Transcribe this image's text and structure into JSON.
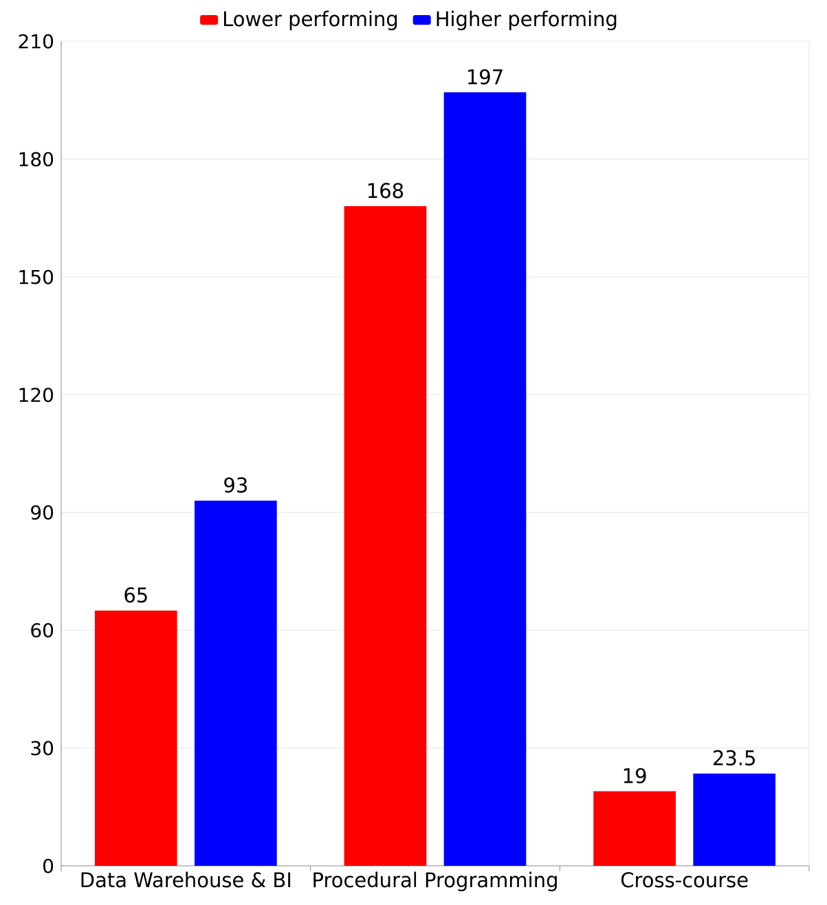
{
  "chart_data": {
    "type": "bar",
    "title": "",
    "xlabel": "",
    "ylabel": "",
    "categories": [
      "Data Warehouse & BI",
      "Procedural Programming",
      "Cross-course"
    ],
    "series": [
      {
        "name": "Lower performing",
        "color": "#ff0000",
        "values": [
          65,
          168,
          19
        ]
      },
      {
        "name": "Higher performing",
        "color": "#0000ff",
        "values": [
          93,
          197,
          23.5
        ]
      }
    ],
    "ylim": [
      0,
      210
    ],
    "yticks": [
      0,
      30,
      60,
      90,
      120,
      150,
      180,
      210
    ],
    "grid": true,
    "legend_position": "top-center"
  }
}
